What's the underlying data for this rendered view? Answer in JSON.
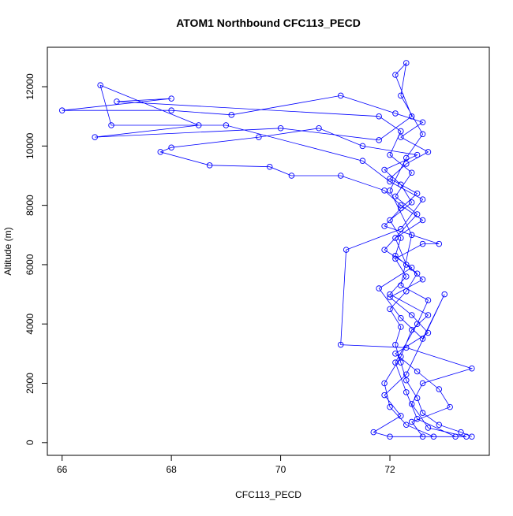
{
  "chart_data": {
    "type": "line",
    "title": "ATOM1 Northbound CFC113_PECD",
    "x_label": "CFC113_PECD",
    "y_label": "Altitude (m)",
    "color": "#0000ff",
    "markers": true,
    "xlim": [
      65.73,
      73.82
    ],
    "ylim": [
      -430,
      13330
    ],
    "xticks": [
      66,
      68,
      70,
      72
    ],
    "yticks": [
      0,
      2000,
      4000,
      6000,
      8000,
      10000,
      12000
    ],
    "x": [
      73.5,
      73.3,
      72.9,
      72.6,
      72.5,
      72.3,
      72.2,
      72.1,
      72.2,
      72.0,
      72.3,
      72.5,
      72.1,
      72.2,
      72.0,
      72.4,
      72.2,
      71.9,
      72.5,
      71.5,
      70.7,
      69.6,
      68.0,
      67.8,
      68.7,
      69.8,
      70.2,
      71.1,
      71.9,
      72.2,
      72.6,
      72.1,
      72.3,
      72.6,
      72.0,
      72.4,
      72.7,
      72.1,
      72.5,
      72.9,
      73.1,
      72.4,
      72.6,
      72.8,
      72.3,
      72.0,
      71.9,
      72.2,
      72.4,
      72.7,
      72.0,
      72.3,
      72.1,
      72.6,
      72.9,
      71.9,
      72.2,
      72.5,
      72.0,
      72.3,
      72.7,
      72.2,
      72.6,
      72.1,
      71.1,
      69.1,
      68.0,
      66.0,
      68.0,
      67.0,
      71.8,
      72.2,
      72.0,
      72.4,
      72.1,
      72.5,
      71.9,
      72.4,
      71.8,
      72.2,
      72.6,
      73.0,
      72.3,
      71.9,
      72.2,
      71.7,
      72.0,
      73.4,
      72.7,
      72.4,
      72.6,
      73.5,
      72.3,
      71.1,
      71.2,
      72.2,
      72.6,
      72.0,
      71.5,
      69.0,
      66.9,
      66.7,
      68.5,
      66.6,
      70.0,
      71.8,
      72.4,
      72.1,
      72.3,
      72.2,
      72.6,
      72.3,
      72.0,
      72.4,
      72.2,
      72.7,
      72.5,
      72.1,
      72.3,
      72.5,
      73.2
    ],
    "values": [
      200,
      350,
      600,
      1000,
      1500,
      2100,
      2700,
      3300,
      3900,
      4500,
      5100,
      5700,
      6300,
      6900,
      7500,
      8100,
      8700,
      9200,
      9700,
      10000,
      10600,
      10300,
      9950,
      9800,
      9350,
      9300,
      9000,
      9000,
      8500,
      8000,
      7500,
      6900,
      6000,
      5500,
      4900,
      4300,
      3700,
      3000,
      2400,
      1800,
      1200,
      700,
      200,
      200,
      600,
      1200,
      2000,
      2900,
      3800,
      4300,
      5000,
      5600,
      6200,
      6700,
      6700,
      7300,
      7900,
      8400,
      8900,
      9400,
      9800,
      10300,
      10800,
      11100,
      11700,
      11050,
      11200,
      11200,
      11600,
      11500,
      11000,
      10500,
      9700,
      9100,
      8300,
      7700,
      6500,
      5900,
      5200,
      4200,
      3500,
      5000,
      2300,
      1600,
      900,
      350,
      200,
      200,
      500,
      1300,
      2000,
      2500,
      3200,
      3300,
      6500,
      7200,
      8200,
      8800,
      9500,
      10700,
      10700,
      12050,
      10700,
      10300,
      10600,
      10200,
      11000,
      12400,
      12800,
      11700,
      10400,
      9600,
      8500,
      7000,
      5300,
      4800,
      4000,
      2700,
      1700,
      800,
      200
    ]
  }
}
